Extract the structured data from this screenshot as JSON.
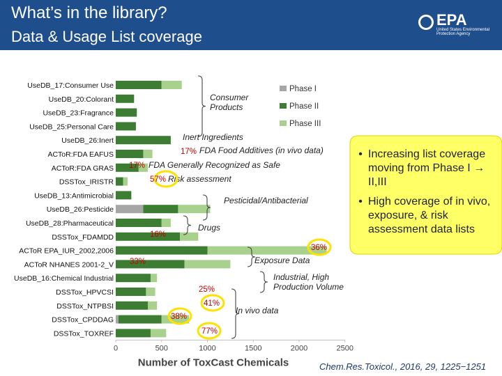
{
  "slide": {
    "title": "What’s in the library?",
    "subtitle": "Data & Usage List coverage",
    "logo_word": "EPA",
    "logo_sub": "United States Environmental Protection Agency",
    "citation": "Chem.Res.Toxicol., 2016, 29, 1225−1251",
    "callout_bg": "#ffff66",
    "bullets": [
      {
        "text": "Increasing list coverage moving from Phase I → II,III"
      },
      {
        "text": "High coverage of in vivo, exposure, & risk assessment data lists"
      }
    ]
  },
  "chart_data": {
    "type": "bar",
    "orientation": "horizontal",
    "stacked": true,
    "xlabel": "Number of ToxCast Chemicals",
    "xlim": [
      0,
      2500
    ],
    "xticks": [
      0,
      500,
      1000,
      1500,
      2000,
      2500
    ],
    "grid": false,
    "legend_position": "top-right",
    "colors": {
      "Phase I": "#a6a6a6",
      "Phase II": "#3d7d33",
      "Phase III": "#a9d18e",
      "pct": "#c00000"
    },
    "categories": [
      "UseDB_17:Consumer Use",
      "UseDB_20:Colorant",
      "UseDB_23:Fragrance",
      "UseDB_25:Personal Care",
      "UseDB_26:Inert",
      "ACToR:FDA EAFUS",
      "ACToR:FDA GRAS",
      "DSSTox_IRISTR",
      "UseDB_13:Antimicrobial",
      "UseDB_26:Pesticide",
      "UseDB_28:Pharmaceutical",
      "DSSTox_FDAMDD",
      "ACToR EPA_IUR_2002,2006",
      "ACToR NHANES 2001-2_V",
      "UseDB_16:Chemical Industrial",
      "DSSTox_HPVCSI",
      "DSSTox_NTPBSI",
      "DSSTox_CPDDAG",
      "DSSTox_TOXREF"
    ],
    "series": [
      {
        "name": "Phase I",
        "values": [
          0,
          0,
          0,
          0,
          0,
          0,
          0,
          0,
          0,
          300,
          0,
          0,
          0,
          0,
          0,
          0,
          0,
          30,
          0
        ]
      },
      {
        "name": "Phase II",
        "values": [
          500,
          200,
          230,
          220,
          600,
          300,
          250,
          80,
          170,
          380,
          500,
          700,
          1000,
          750,
          380,
          330,
          350,
          470,
          380
        ]
      },
      {
        "name": "Phase III",
        "values": [
          220,
          0,
          0,
          0,
          0,
          100,
          100,
          50,
          0,
          350,
          100,
          200,
          1300,
          500,
          70,
          100,
          100,
          300,
          170
        ]
      }
    ],
    "percent_labels": [
      {
        "row": 5,
        "text": "17%"
      },
      {
        "row": 6,
        "text": "17%"
      },
      {
        "row": 7,
        "text": "57%"
      },
      {
        "row": 11,
        "text": "16%"
      },
      {
        "row": 12,
        "text": "36%"
      },
      {
        "row": 13,
        "text": "33%"
      },
      {
        "row": 15,
        "text": "25%"
      },
      {
        "row": 16,
        "text": "41%"
      },
      {
        "row": 17,
        "text": "38%"
      },
      {
        "row": 18,
        "text": "77%"
      }
    ],
    "annotations": [
      {
        "text": "Consumer Products"
      },
      {
        "text": "Inert Ingredients"
      },
      {
        "text": "FDA Food Additives (in vivo data)"
      },
      {
        "text": "FDA Generally Recognized as Safe"
      },
      {
        "text": "Risk assessment"
      },
      {
        "text": "Pesticidal/Antibacterial"
      },
      {
        "text": "Drugs"
      },
      {
        "text": "Exposure Data"
      },
      {
        "text": "Industrial, High Production Volume"
      },
      {
        "text": "In vivo data"
      }
    ]
  }
}
